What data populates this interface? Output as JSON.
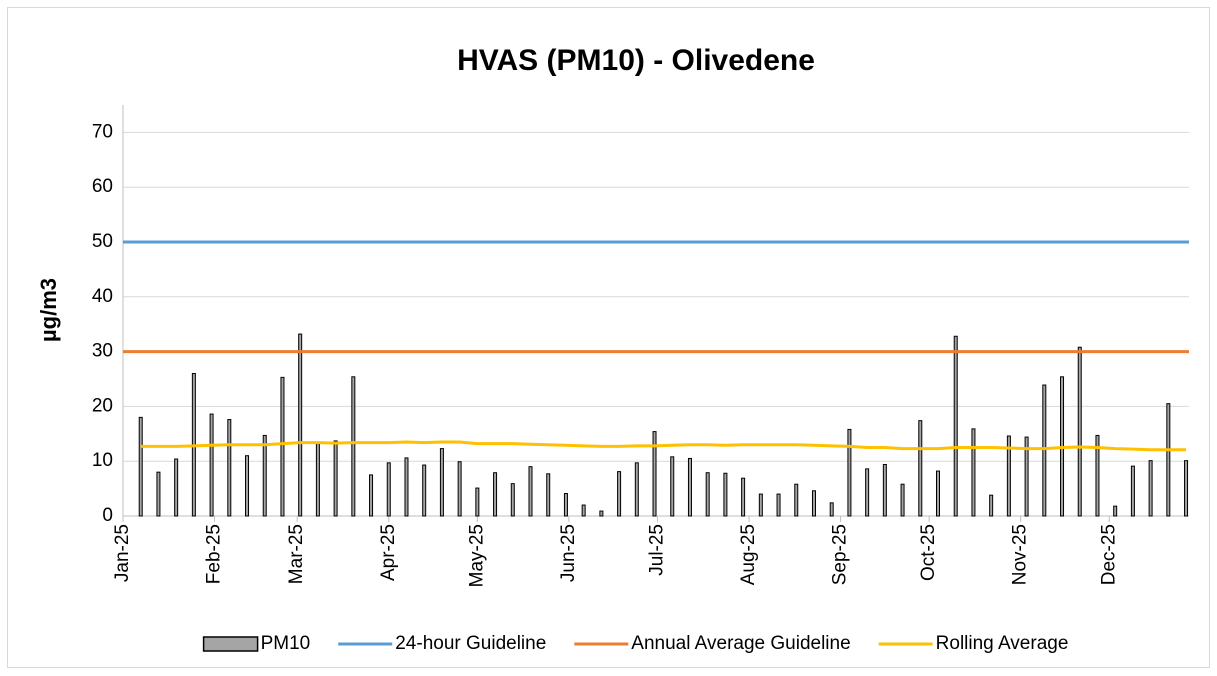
{
  "chart_data": {
    "type": "bar",
    "title": "HVAS (PM10) - Olivedene",
    "y_label": "µg/m3",
    "xlim": [
      0,
      361
    ],
    "xticks": [
      {
        "value": 0,
        "label": "Jan-25"
      },
      {
        "value": 31,
        "label": "Feb-25"
      },
      {
        "value": 59,
        "label": "Mar-25"
      },
      {
        "value": 90,
        "label": "Apr-25"
      },
      {
        "value": 120,
        "label": "May-25"
      },
      {
        "value": 151,
        "label": "Jun-25"
      },
      {
        "value": 181,
        "label": "Jul-25"
      },
      {
        "value": 212,
        "label": "Aug-25"
      },
      {
        "value": 243,
        "label": "Sep-25"
      },
      {
        "value": 273,
        "label": "Oct-25"
      },
      {
        "value": 304,
        "label": "Nov-25"
      },
      {
        "value": 334,
        "label": "Dec-25"
      }
    ],
    "ylim": [
      0,
      75
    ],
    "yticks": [
      0,
      10,
      20,
      30,
      40,
      50,
      60,
      70
    ],
    "grid": true,
    "legend": "bottom",
    "series": [
      {
        "name": "PM10",
        "type": "bar",
        "color": "#a5a5a5",
        "edgecolor": "#000000",
        "x": [
          6,
          12,
          18,
          24,
          30,
          36,
          42,
          48,
          54,
          60,
          66,
          72,
          78,
          84,
          90,
          96,
          102,
          108,
          114,
          120,
          126,
          132,
          138,
          144,
          150,
          156,
          162,
          168,
          174,
          180,
          186,
          192,
          198,
          204,
          210,
          216,
          222,
          228,
          234,
          240,
          246,
          252,
          258,
          264,
          270,
          276,
          282,
          288,
          294,
          300,
          306,
          312,
          318,
          324,
          330,
          336,
          342,
          348,
          354,
          360
        ],
        "values": [
          18,
          8,
          10.4,
          26,
          18.6,
          17.6,
          11,
          14.7,
          25.3,
          33.2,
          13.2,
          13.7,
          25.4,
          7.5,
          9.7,
          10.6,
          9.3,
          12.3,
          9.9,
          5.1,
          7.9,
          5.9,
          9,
          7.7,
          4.1,
          2,
          0.9,
          8.1,
          9.7,
          15.4,
          10.8,
          10.5,
          7.9,
          7.8,
          6.9,
          4,
          4,
          5.8,
          4.6,
          2.4,
          15.8,
          8.6,
          9.4,
          5.8,
          17.4,
          8.2,
          32.8,
          15.9,
          3.8,
          14.6,
          14.4,
          23.9,
          25.4,
          30.8,
          14.7,
          1.8,
          9.1,
          10.1,
          20.5,
          10.1
        ]
      },
      {
        "name": "24-hour Guideline",
        "type": "line",
        "color": "#5b9bd5",
        "x": [
          0,
          361
        ],
        "values": [
          50,
          50
        ]
      },
      {
        "name": "Annual Average Guideline",
        "type": "line",
        "color": "#ed7d31",
        "x": [
          0,
          361
        ],
        "values": [
          30,
          30
        ]
      },
      {
        "name": "Rolling Average",
        "type": "line",
        "color": "#ffc000",
        "x": [
          6,
          12,
          18,
          24,
          30,
          36,
          42,
          48,
          54,
          60,
          66,
          72,
          78,
          84,
          90,
          96,
          102,
          108,
          114,
          120,
          126,
          132,
          138,
          144,
          150,
          156,
          162,
          168,
          174,
          180,
          186,
          192,
          198,
          204,
          210,
          216,
          222,
          228,
          234,
          240,
          246,
          252,
          258,
          264,
          270,
          276,
          282,
          288,
          294,
          300,
          306,
          312,
          318,
          324,
          330,
          336,
          342,
          348,
          354,
          360
        ],
        "values": [
          12.7,
          12.7,
          12.7,
          12.8,
          12.9,
          13,
          13,
          13,
          13.2,
          13.4,
          13.4,
          13.3,
          13.4,
          13.4,
          13.4,
          13.5,
          13.4,
          13.5,
          13.5,
          13.2,
          13.2,
          13.2,
          13.1,
          13,
          12.9,
          12.8,
          12.7,
          12.7,
          12.8,
          12.8,
          12.9,
          13,
          13,
          12.9,
          13,
          13,
          13,
          13,
          12.9,
          12.8,
          12.7,
          12.5,
          12.5,
          12.3,
          12.3,
          12.3,
          12.5,
          12.5,
          12.5,
          12.4,
          12.3,
          12.3,
          12.5,
          12.6,
          12.5,
          12.3,
          12.2,
          12.1,
          12.1,
          12.1
        ]
      }
    ]
  }
}
